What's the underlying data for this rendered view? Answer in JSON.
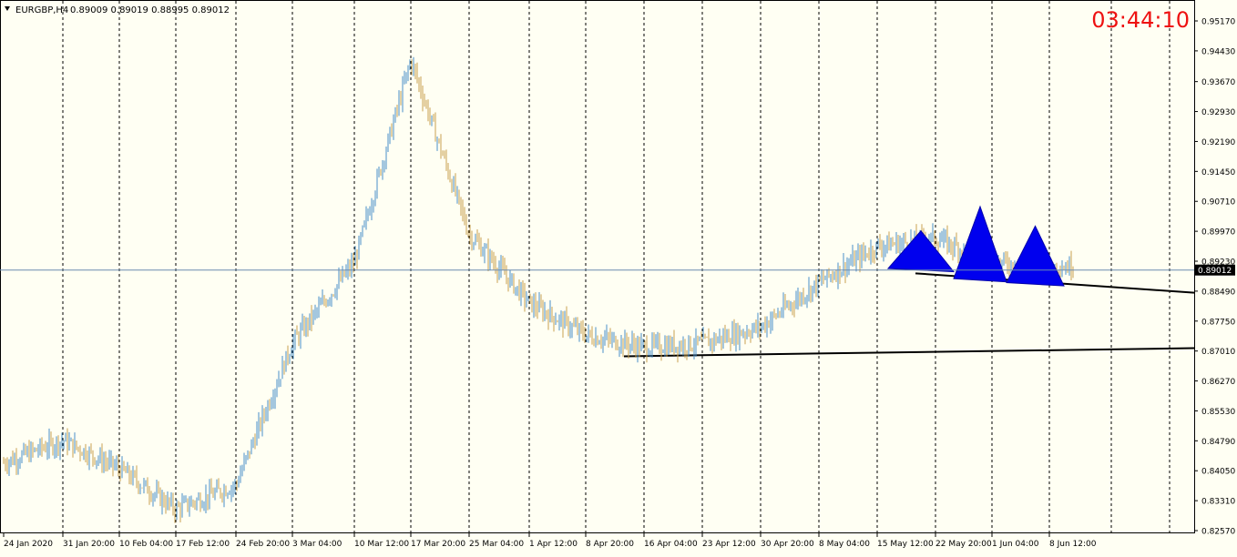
{
  "header": {
    "symbol_label": "EURGBP,H4",
    "ohlc_text": "0.89009 0.89019 0.88995 0.89012",
    "dropdown_icon": "triangle-down-icon"
  },
  "clock": {
    "text": "03:44:10",
    "color": "#ee1111"
  },
  "colors": {
    "background": "#fffff3",
    "up": "#4a8fc8",
    "down": "#c8a050",
    "grid": "#000000",
    "price_line": "#6a8cb0",
    "pattern": "#0000ee",
    "trendline": "#000000"
  },
  "chart_data": {
    "type": "line",
    "title": "EURGBP,H4",
    "xlabel": "",
    "ylabel": "",
    "ylim": [
      0.8257,
      0.9537
    ],
    "grid": true,
    "y_ticks": [
      "0.95170",
      "0.94430",
      "0.93670",
      "0.92930",
      "0.92190",
      "0.91450",
      "0.90710",
      "0.89970",
      "0.89230",
      "0.88490",
      "0.87750",
      "0.87010",
      "0.86270",
      "0.85530",
      "0.84790",
      "0.84050",
      "0.83310",
      "0.82570"
    ],
    "x_ticks": [
      "24 Jan 2020",
      "31 Jan 20:00",
      "10 Feb 04:00",
      "17 Feb 12:00",
      "24 Feb 20:00",
      "3 Mar 04:00",
      "10 Mar 12:00",
      "17 Mar 20:00",
      "25 Mar 04:00",
      "1 Apr 12:00",
      "8 Apr 20:00",
      "16 Apr 04:00",
      "23 Apr 12:00",
      "30 Apr 20:00",
      "8 May 04:00",
      "15 May 12:00",
      "22 May 20:00",
      "1 Jun 04:00",
      "8 Jun 12:00"
    ],
    "current_price": 0.89012,
    "current_price_label": "0.89012",
    "series": [
      {
        "x": [
          "24 Jan 2020",
          "31 Jan 20:00",
          "10 Feb 04:00",
          "17 Feb 12:00",
          "24 Feb 20:00",
          "3 Mar 04:00",
          "10 Mar 12:00",
          "17 Mar 20:00",
          "25 Mar 04:00",
          "1 Apr 12:00",
          "8 Apr 20:00",
          "16 Apr 04:00",
          "23 Apr 12:00",
          "30 Apr 20:00",
          "8 May 04:00",
          "15 May 12:00",
          "22 May 20:00",
          "1 Jun 04:00",
          "8 Jun 12:00"
        ],
        "values": [
          0.8425,
          0.848,
          0.841,
          0.831,
          0.837,
          0.872,
          0.892,
          0.942,
          0.899,
          0.882,
          0.874,
          0.871,
          0.872,
          0.876,
          0.887,
          0.896,
          0.898,
          0.892,
          0.891
        ]
      }
    ],
    "trendlines": [
      {
        "x": [
          "8 Apr 20:00",
          "end"
        ],
        "y": [
          0.8688,
          0.8708
        ]
      },
      {
        "x": [
          "15 May 12:00",
          "end"
        ],
        "y": [
          0.8893,
          0.8845
        ]
      }
    ],
    "pattern_triangles": [
      {
        "base_start": "15 May 12:00",
        "base_end": "22 May 20:00",
        "peak": 0.8998,
        "base": 0.8905
      },
      {
        "base_start": "22 May 20:00",
        "base_end": "1 Jun 04:00",
        "peak": 0.9058,
        "base": 0.888
      },
      {
        "base_start": "1 Jun 04:00",
        "base_end": "8 Jun 12:00",
        "peak": 0.901,
        "base": 0.887
      }
    ]
  }
}
